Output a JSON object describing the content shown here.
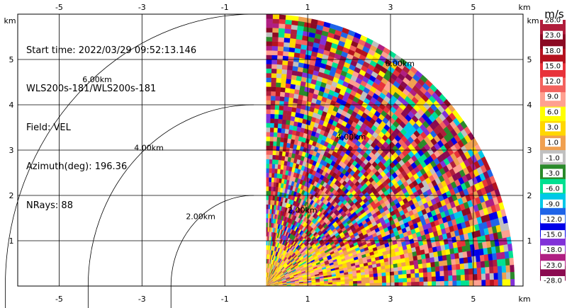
{
  "chart_data": {
    "type": "heatmap",
    "info": {
      "start_time": "Start time: 2022/03/29 09:52:13.146",
      "instrument": "WLS200s-181/WLS200s-181",
      "field": "Field: VEL",
      "azimuth": "Azimuth(deg): 196.36",
      "nrays": "NRays: 88"
    },
    "axis_unit": "km",
    "x_ticks": [
      "-5",
      "-3",
      "-1",
      "1",
      "3",
      "5"
    ],
    "x_tick_values": [
      -5,
      -3,
      -1,
      1,
      3,
      5
    ],
    "y_ticks": [
      "1",
      "2",
      "3",
      "4",
      "5"
    ],
    "y_tick_values": [
      1,
      2,
      3,
      4,
      5
    ],
    "xlim": [
      -6.0,
      6.2
    ],
    "ylim": [
      0,
      6.0
    ],
    "range_rings": [
      {
        "label": "2.00km",
        "radius": 2
      },
      {
        "label": "4.00km",
        "radius": 4
      },
      {
        "label": "6.00km",
        "radius": 6
      }
    ],
    "inner_ring_labels": [
      {
        "label": "2.00km",
        "radius": 2
      },
      {
        "label": "4.00km",
        "radius": 4
      },
      {
        "label": "6.00km",
        "radius": 6
      }
    ],
    "sector": {
      "x_min": -0.3,
      "max_range": 6.0
    },
    "colorbar": {
      "unit": "m/s",
      "labels": [
        "28.0",
        "23.0",
        "18.0",
        "15.0",
        "12.0",
        "9.0",
        "6.0",
        "3.0",
        "1.0",
        "-1.0",
        "-3.0",
        "-6.0",
        "-9.0",
        "-12.0",
        "-15.0",
        "-18.0",
        "-23.0",
        "-28.0"
      ],
      "colors": [
        "#b01e3c",
        "#8b0a23",
        "#b5121e",
        "#e8323a",
        "#f3625e",
        "#ffa090",
        "#ffff00",
        "#ffd700",
        "#f0a050",
        "#c0c0c0",
        "#2a8a2a",
        "#00e090",
        "#00c8e8",
        "#1e64e8",
        "#0000e8",
        "#8030d8",
        "#b01e82",
        "#8b0a50"
      ]
    }
  }
}
